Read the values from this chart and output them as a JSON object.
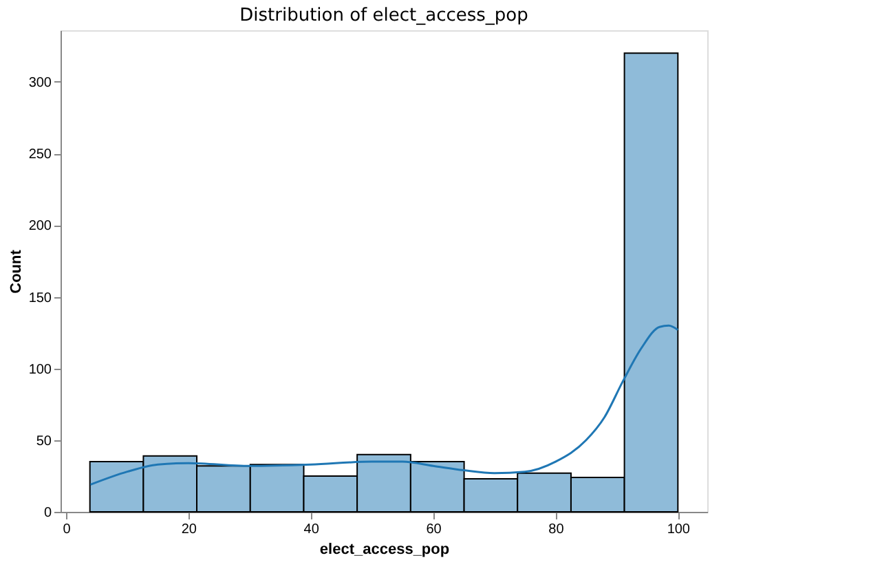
{
  "chart_data": {
    "type": "histogram",
    "title": "Distribution of elect_access_pop",
    "xlabel": "elect_access_pop",
    "ylabel": "Count",
    "bins": [
      3.9,
      12.64,
      21.37,
      30.11,
      38.85,
      47.58,
      56.32,
      65.06,
      73.79,
      82.53,
      91.26,
      100
    ],
    "values": [
      35,
      39,
      32,
      33,
      25,
      40,
      35,
      23,
      27,
      24,
      320
    ],
    "color": "#8fbbd9",
    "series": [
      {
        "type": "line",
        "color": "#1f77b4",
        "x": [
          4,
          10,
          15,
          20,
          30,
          40,
          50,
          55,
          60,
          65,
          70,
          75,
          80,
          85,
          88,
          91,
          94,
          97,
          98.5,
          100
        ],
        "values": [
          19,
          28,
          33,
          34,
          32,
          33,
          35,
          35,
          32,
          29,
          27,
          28,
          35,
          50,
          66,
          91,
          114,
          129,
          130,
          127
        ]
      }
    ],
    "xlim": [
      -0.9,
      104.8
    ],
    "ylim": [
      0,
      336
    ],
    "xticks": [
      0,
      20,
      40,
      60,
      80,
      100
    ],
    "yticks": [
      0,
      50,
      100,
      150,
      200,
      250,
      300
    ],
    "grid": false
  }
}
